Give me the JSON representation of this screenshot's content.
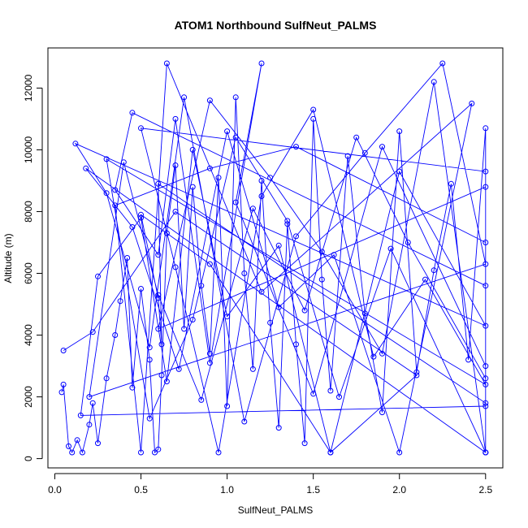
{
  "chart_data": {
    "type": "scatter",
    "title": "ATOM1 Northbound SulfNeut_PALMS",
    "xlabel": "SulfNeut_PALMS",
    "ylabel": "Altitude (m)",
    "xlim": [
      -0.04,
      2.6
    ],
    "ylim": [
      -300,
      13300
    ],
    "x_ticks": [
      0.0,
      0.5,
      1.0,
      1.5,
      2.0,
      2.5
    ],
    "x_tick_labels": [
      "0.0",
      "0.5",
      "1.0",
      "1.5",
      "2.0",
      "2.5"
    ],
    "y_ticks": [
      0,
      2000,
      4000,
      6000,
      8000,
      10000,
      12000
    ],
    "y_tick_labels": [
      "0",
      "2000",
      "4000",
      "6000",
      "8000",
      "10000",
      "12000"
    ],
    "connected": true,
    "color": "#0000ff",
    "series": [
      {
        "x": [
          0.04,
          0.05,
          0.08,
          0.1,
          0.13,
          0.16,
          0.2,
          0.22,
          0.25,
          0.3,
          0.35,
          0.38,
          0.42,
          0.45,
          0.5,
          0.55,
          0.58,
          0.6,
          0.62,
          0.65,
          0.7,
          0.75,
          0.8,
          0.85,
          0.9,
          0.95,
          1.0,
          1.05,
          1.1,
          1.15,
          1.2,
          1.25,
          1.3,
          1.35,
          1.4,
          1.45,
          1.5,
          1.55,
          1.6,
          1.7,
          1.8,
          1.9,
          2.0,
          2.1,
          2.2,
          2.3,
          2.4,
          2.5,
          2.5,
          2.5,
          0.45,
          0.35,
          0.6,
          0.7,
          0.9,
          1.2,
          1.05,
          1.5,
          1.9,
          2.5,
          2.5,
          0.15,
          0.25,
          0.5,
          0.65,
          0.8,
          1.0,
          1.3,
          1.6,
          2.0,
          2.5,
          0.12,
          0.3,
          0.55,
          0.75,
          1.1,
          1.4,
          1.8,
          2.25,
          2.5,
          0.2,
          0.4,
          0.6,
          0.85,
          1.15,
          1.45,
          1.75,
          2.05,
          2.5,
          2.5,
          0.5,
          0.7,
          0.95,
          1.2,
          1.5,
          1.85,
          2.15,
          2.5,
          0.3,
          0.55,
          0.8,
          1.05,
          1.35,
          1.65,
          1.95,
          2.5,
          2.5,
          0.6,
          0.9,
          1.25,
          1.55,
          1.9,
          2.2,
          2.5,
          0.18,
          0.45,
          0.72,
          1.0,
          1.3,
          1.62,
          2.0,
          2.42,
          1.2,
          0.65,
          0.5,
          0.35,
          0.9,
          1.4,
          2.5,
          2.5,
          0.6,
          0.62,
          0.6,
          0.5,
          0.9,
          1.6,
          2.1,
          0.7,
          0.22,
          0.05
        ],
        "y": [
          2150,
          2400,
          400,
          200,
          600,
          200,
          1100,
          1800,
          500,
          2600,
          4000,
          5100,
          6500,
          2300,
          5500,
          3200,
          200,
          300,
          2700,
          7300,
          9500,
          4200,
          8800,
          5600,
          3400,
          9100,
          1700,
          11700,
          6000,
          2900,
          9000,
          4400,
          1000,
          7600,
          3700,
          500,
          11000,
          5800,
          2200,
          9800,
          4700,
          1500,
          10600,
          2800,
          6100,
          8900,
          3200,
          10700,
          200,
          5600,
          11200,
          8700,
          6600,
          11000,
          3100,
          12800,
          8300,
          2100,
          10100,
          3000,
          1700,
          1400,
          5900,
          7800,
          2500,
          10000,
          4600,
          6900,
          200,
          9300,
          4300,
          10200,
          8600,
          3600,
          11700,
          1200,
          7200,
          9900,
          12800,
          6300,
          2000,
          9600,
          5300,
          1900,
          8100,
          4800,
          10400,
          7000,
          2600,
          9300,
          10700,
          6200,
          200,
          8500,
          11300,
          3300,
          5800,
          2400,
          9700,
          1300,
          4500,
          10400,
          7700,
          2000,
          6800,
          200,
          8800,
          4200,
          11600,
          9100,
          6700,
          3400,
          12200,
          200,
          9400,
          7500,
          2900,
          10600,
          4900,
          6600,
          200,
          11500,
          5400,
          12800,
          200,
          8200,
          9400,
          10100,
          7000,
          1800,
          8900,
          3700,
          5200,
          7900,
          6300,
          200,
          2700,
          8000,
          4100,
          3500
        ]
      }
    ]
  }
}
